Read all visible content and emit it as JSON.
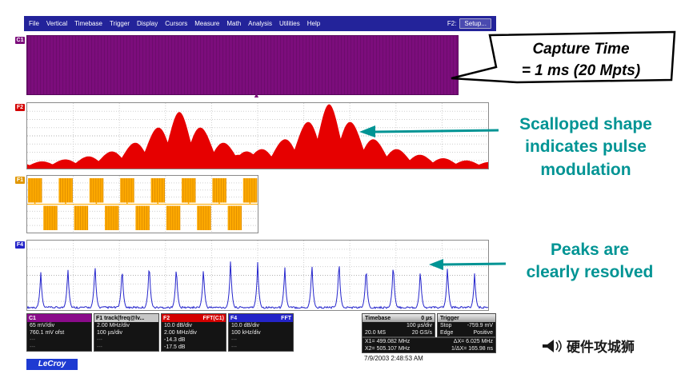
{
  "window": {
    "menu_items": [
      "File",
      "Vertical",
      "Timebase",
      "Trigger",
      "Display",
      "Cursors",
      "Measure",
      "Math",
      "Analysis",
      "Utilities",
      "Help"
    ],
    "f2_prefix": "F2:",
    "setup_button": "Setup..."
  },
  "callout": {
    "line1": "Capture Time",
    "line2": "= 1 ms (20 Mpts)"
  },
  "annotations": {
    "color": "#009494",
    "scalloped_lines": [
      "Scalloped shape",
      "indicates pulse",
      "modulation"
    ],
    "peaks_lines": [
      "Peaks are",
      "clearly resolved"
    ]
  },
  "trace_labels": {
    "c1": "C1",
    "f2": "F2",
    "f1": "F1",
    "f4": "F4"
  },
  "descriptors": [
    {
      "id": "c1",
      "header_left": "C1",
      "header_right": "",
      "header_bg": "#8a0b8a",
      "header_fg": "#ffffff",
      "rows": [
        "65 mV/div",
        "760.1 mV ofst",
        "---",
        "---"
      ]
    },
    {
      "id": "f1",
      "header_left": "F1 track(freq@lv...",
      "header_right": "",
      "header_bg": "#c8c8c8",
      "header_fg": "#000000",
      "rows": [
        "2.00 MHz/div",
        "100 µs/div",
        "---",
        "---"
      ]
    },
    {
      "id": "f2",
      "header_left": "F2",
      "header_right": "FFT(C1)",
      "header_bg": "#d40000",
      "header_fg": "#ffffff",
      "rows": [
        "10.0 dB/div",
        "2.00 MHz/div",
        "-14.3 dB",
        "-17.5 dB"
      ]
    },
    {
      "id": "f4",
      "header_left": "F4",
      "header_right": "FFT",
      "header_bg": "#2424c8",
      "header_fg": "#ffffff",
      "rows": [
        "10.0 dB/div",
        "100 kHz/div",
        "---",
        "---"
      ]
    }
  ],
  "timebase": {
    "header_left": "Timebase",
    "header_right": "0 µs",
    "rows": [
      [
        "",
        "100 µs/div"
      ],
      [
        "20.0 MS",
        "20 GS/s"
      ]
    ]
  },
  "trigger": {
    "header_left": "Trigger",
    "header_right": "",
    "rows": [
      [
        "Stop",
        "-759.9 mV"
      ],
      [
        "Edge",
        "Positive"
      ]
    ]
  },
  "cursors": {
    "x1": "X1= 499.082 MHz",
    "dx": "ΔX= 6.025 MHz",
    "x2": "X2= 505.107 MHz",
    "inv_dx": "1/ΔX= 165.98 ns"
  },
  "footer": {
    "brand": "LeCroy",
    "datetime": "7/9/2003 2:48:53 AM"
  },
  "watermark": {
    "text": "硬件攻城狮"
  },
  "traces": {
    "c1_capture": {
      "type": "dense-capture",
      "color": "#7c0d7c"
    },
    "f2_spectrum": {
      "type": "scalloped-spectrum",
      "color": "#e60000",
      "centers": [
        0.33,
        0.655
      ],
      "amplitudes": [
        0.88,
        1.0
      ],
      "scallop_period": 0.05,
      "noise_floor": 0.04
    },
    "f1_pulses": {
      "type": "pulse-train",
      "color": "#ffab00",
      "stripe_color": "#e09000",
      "num_bursts": 15
    },
    "f4_spectrum": {
      "type": "resolved-peaks",
      "color": "#2525cc",
      "peak_heights": [
        0.62,
        0.7,
        0.78,
        0.72,
        0.8,
        0.74,
        0.7,
        0.82,
        0.76,
        0.72,
        0.78,
        0.84,
        0.74,
        0.8,
        0.68,
        0.72,
        0.6
      ]
    }
  }
}
